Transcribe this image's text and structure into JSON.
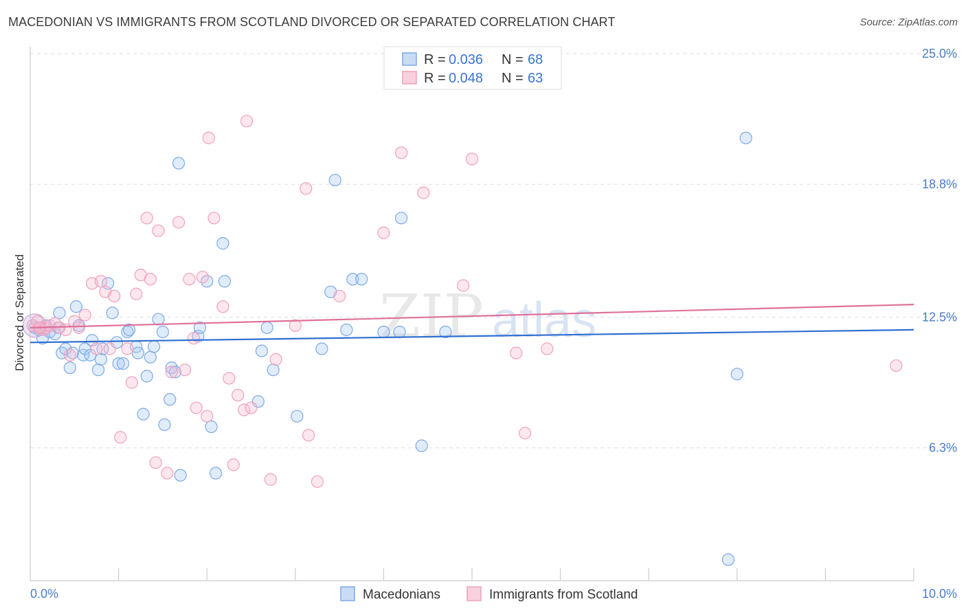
{
  "title": "MACEDONIAN VS IMMIGRANTS FROM SCOTLAND DIVORCED OR SEPARATED CORRELATION CHART",
  "source": "Source: ZipAtlas.com",
  "watermark": {
    "part1": "ZIP",
    "part2": "atlas"
  },
  "legend": {
    "rows": [
      {
        "r_label": "R =",
        "r_value": "0.036",
        "n_label": "N =",
        "n_value": "68"
      },
      {
        "r_label": "R =",
        "r_value": "0.048",
        "n_label": "N =",
        "n_value": "63"
      }
    ]
  },
  "bottom_legend": [
    "Macedonians",
    "Immigrants from Scotland"
  ],
  "chart_data": {
    "type": "scatter",
    "title": "MACEDONIAN VS IMMIGRANTS FROM SCOTLAND DIVORCED OR SEPARATED CORRELATION CHART",
    "xlabel": "",
    "ylabel": "Divorced or Separated",
    "xlim": [
      0,
      10
    ],
    "ylim": [
      0,
      25
    ],
    "x_tick_labels": [
      "0.0%",
      "10.0%"
    ],
    "y_ticks": [
      6.3,
      12.5,
      18.8,
      25.0
    ],
    "y_tick_labels": [
      "6.3%",
      "12.5%",
      "18.8%",
      "25.0%"
    ],
    "grid": true,
    "legend_position": "top-center",
    "colors": {
      "Macedonians": "#7aaae8",
      "Immigrants from Scotland": "#f0a0bb",
      "Macedonians_line": "#2f6fd1",
      "Immigrants from Scotland_line": "#e0709a"
    },
    "series": [
      {
        "name": "Macedonians",
        "r": 0.036,
        "n": 68,
        "trend": [
          [
            0,
            11.3
          ],
          [
            10,
            11.9
          ]
        ],
        "points": [
          [
            0.05,
            12.0
          ],
          [
            0.1,
            11.9
          ],
          [
            0.14,
            11.5
          ],
          [
            0.18,
            12.1
          ],
          [
            0.22,
            11.8
          ],
          [
            0.28,
            11.7
          ],
          [
            0.32,
            12.0
          ],
          [
            0.33,
            12.7
          ],
          [
            0.36,
            10.8
          ],
          [
            0.4,
            11.0
          ],
          [
            0.45,
            10.1
          ],
          [
            0.48,
            10.8
          ],
          [
            0.52,
            13.0
          ],
          [
            0.55,
            12.1
          ],
          [
            0.6,
            10.7
          ],
          [
            0.62,
            11.0
          ],
          [
            0.68,
            10.7
          ],
          [
            0.7,
            11.4
          ],
          [
            0.77,
            10.0
          ],
          [
            0.8,
            10.5
          ],
          [
            0.82,
            11.0
          ],
          [
            0.88,
            14.1
          ],
          [
            0.93,
            12.7
          ],
          [
            0.98,
            11.3
          ],
          [
            1.0,
            10.3
          ],
          [
            1.05,
            10.3
          ],
          [
            1.1,
            11.8
          ],
          [
            1.12,
            11.9
          ],
          [
            1.2,
            11.1
          ],
          [
            1.22,
            10.8
          ],
          [
            1.28,
            7.9
          ],
          [
            1.32,
            9.7
          ],
          [
            1.36,
            10.6
          ],
          [
            1.4,
            11.1
          ],
          [
            1.45,
            12.4
          ],
          [
            1.5,
            11.8
          ],
          [
            1.52,
            7.4
          ],
          [
            1.58,
            8.6
          ],
          [
            1.6,
            10.1
          ],
          [
            1.64,
            9.9
          ],
          [
            1.68,
            19.8
          ],
          [
            1.7,
            5.0
          ],
          [
            1.9,
            11.6
          ],
          [
            1.92,
            12.0
          ],
          [
            2.0,
            14.2
          ],
          [
            2.05,
            7.3
          ],
          [
            2.1,
            5.1
          ],
          [
            2.18,
            16.0
          ],
          [
            2.2,
            14.2
          ],
          [
            2.58,
            8.5
          ],
          [
            2.62,
            10.9
          ],
          [
            2.68,
            12.0
          ],
          [
            2.75,
            10.0
          ],
          [
            3.02,
            7.8
          ],
          [
            3.3,
            11.0
          ],
          [
            3.4,
            13.7
          ],
          [
            3.45,
            19.0
          ],
          [
            3.58,
            11.9
          ],
          [
            3.65,
            14.3
          ],
          [
            3.75,
            14.3
          ],
          [
            4.0,
            11.8
          ],
          [
            4.18,
            11.8
          ],
          [
            4.2,
            17.2
          ],
          [
            4.43,
            6.4
          ],
          [
            4.7,
            11.8
          ],
          [
            8.0,
            9.8
          ],
          [
            8.1,
            21.0
          ],
          [
            7.9,
            1.0
          ]
        ]
      },
      {
        "name": "Immigrants from Scotland",
        "r": 0.048,
        "n": 63,
        "trend": [
          [
            0,
            12.0
          ],
          [
            10,
            13.1
          ]
        ],
        "points": [
          [
            0.03,
            12.1
          ],
          [
            0.08,
            12.3
          ],
          [
            0.12,
            12.0
          ],
          [
            0.15,
            11.9
          ],
          [
            0.18,
            12.0
          ],
          [
            0.22,
            12.1
          ],
          [
            0.28,
            12.2
          ],
          [
            0.33,
            12.0
          ],
          [
            0.4,
            11.9
          ],
          [
            0.45,
            10.7
          ],
          [
            0.5,
            12.3
          ],
          [
            0.55,
            12.0
          ],
          [
            0.62,
            12.6
          ],
          [
            0.7,
            14.1
          ],
          [
            0.75,
            11.0
          ],
          [
            0.8,
            14.2
          ],
          [
            0.85,
            13.7
          ],
          [
            0.9,
            11.0
          ],
          [
            0.95,
            13.5
          ],
          [
            1.02,
            6.8
          ],
          [
            1.1,
            11.0
          ],
          [
            1.15,
            9.4
          ],
          [
            1.2,
            13.6
          ],
          [
            1.25,
            14.5
          ],
          [
            1.32,
            17.2
          ],
          [
            1.36,
            14.3
          ],
          [
            1.42,
            5.6
          ],
          [
            1.45,
            16.6
          ],
          [
            1.55,
            5.1
          ],
          [
            1.6,
            9.9
          ],
          [
            1.68,
            17.0
          ],
          [
            1.75,
            10.0
          ],
          [
            1.8,
            14.3
          ],
          [
            1.85,
            11.5
          ],
          [
            1.88,
            8.2
          ],
          [
            1.95,
            14.4
          ],
          [
            2.0,
            7.8
          ],
          [
            2.02,
            21.0
          ],
          [
            2.08,
            17.2
          ],
          [
            2.18,
            13.0
          ],
          [
            2.25,
            9.6
          ],
          [
            2.3,
            5.5
          ],
          [
            2.35,
            8.8
          ],
          [
            2.42,
            8.1
          ],
          [
            2.45,
            21.8
          ],
          [
            2.5,
            8.2
          ],
          [
            2.72,
            4.8
          ],
          [
            2.78,
            10.5
          ],
          [
            3.0,
            12.1
          ],
          [
            3.12,
            18.6
          ],
          [
            3.15,
            6.9
          ],
          [
            3.25,
            4.7
          ],
          [
            3.5,
            13.5
          ],
          [
            4.0,
            16.5
          ],
          [
            4.2,
            20.3
          ],
          [
            4.45,
            18.4
          ],
          [
            4.9,
            14.0
          ],
          [
            5.0,
            20.0
          ],
          [
            5.5,
            10.8
          ],
          [
            5.6,
            7.0
          ],
          [
            5.85,
            11.0
          ],
          [
            9.8,
            10.2
          ],
          [
            0.1,
            12.0
          ]
        ]
      }
    ]
  }
}
